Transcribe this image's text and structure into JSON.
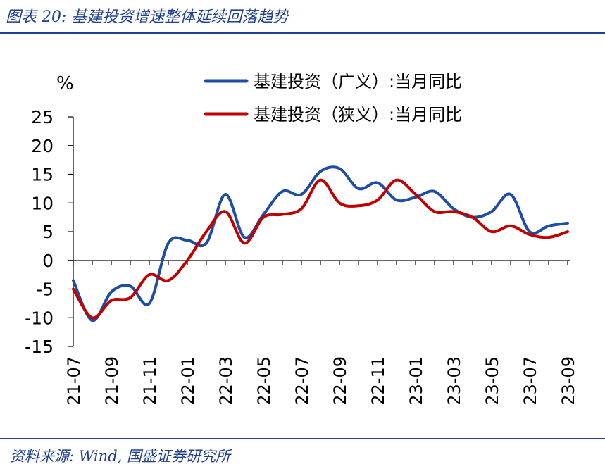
{
  "figure": {
    "title": "图表 20:  基建投资增速整体延续回落趋势",
    "source": "资料来源:  Wind,  国盛证券研究所"
  },
  "colors": {
    "accent": "#1f3f8f",
    "series_broad": "#1f4da3",
    "series_narrow": "#c00000",
    "axis": "#000000"
  },
  "chart_data": {
    "type": "line",
    "unit_label": "%",
    "ylim": [
      -15,
      25
    ],
    "yticks": [
      -15,
      -10,
      -5,
      0,
      5,
      10,
      15,
      20,
      25
    ],
    "xticks": [
      "21-07",
      "21-09",
      "21-11",
      "22-01",
      "22-03",
      "22-05",
      "22-07",
      "22-09",
      "22-11",
      "23-01",
      "23-03",
      "23-05",
      "23-07",
      "23-09"
    ],
    "x": [
      "21-07",
      "21-08",
      "21-09",
      "21-10",
      "21-11",
      "21-12",
      "22-01",
      "22-02",
      "22-03",
      "22-04",
      "22-05",
      "22-06",
      "22-07",
      "22-08",
      "22-09",
      "22-10",
      "22-11",
      "22-12",
      "23-01",
      "23-02",
      "23-03",
      "23-04",
      "23-05",
      "23-06",
      "23-07",
      "23-08",
      "23-09"
    ],
    "grid": false,
    "legend_position": "top-right",
    "series": [
      {
        "name": "基建投资（广义）:当月同比",
        "color": "#1f4da3",
        "values": [
          -3.5,
          -10.5,
          -5.5,
          -4.5,
          -7.5,
          3.0,
          3.5,
          3.0,
          11.5,
          4.0,
          8.0,
          12.0,
          11.5,
          15.5,
          16.0,
          12.5,
          13.5,
          10.5,
          11.0,
          12.0,
          9.0,
          7.5,
          8.5,
          11.5,
          5.0,
          6.0,
          6.5
        ]
      },
      {
        "name": "基建投资（狭义）:当月同比",
        "color": "#c00000",
        "values": [
          -5.0,
          -10.0,
          -7.0,
          -6.5,
          -2.5,
          -3.5,
          0.0,
          5.0,
          8.5,
          3.0,
          7.5,
          8.0,
          9.0,
          14.0,
          10.0,
          9.5,
          10.5,
          14.0,
          11.5,
          8.5,
          8.5,
          7.5,
          5.0,
          6.0,
          4.5,
          4.0,
          5.0
        ]
      }
    ]
  }
}
